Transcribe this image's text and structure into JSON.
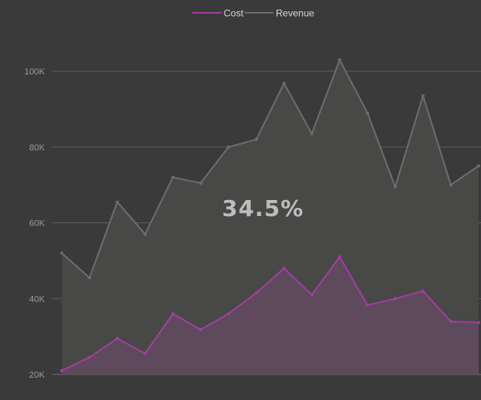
{
  "chart_data": {
    "type": "area",
    "title": "",
    "xlabel": "",
    "ylabel": "",
    "ylim": [
      20000,
      110000
    ],
    "yticks": [
      {
        "value": 20000,
        "label": "20K"
      },
      {
        "value": 40000,
        "label": "40K"
      },
      {
        "value": 60000,
        "label": "60K"
      },
      {
        "value": 80000,
        "label": "80K"
      },
      {
        "value": 100000,
        "label": "100K"
      }
    ],
    "x": [
      1,
      2,
      3,
      4,
      5,
      6,
      7,
      8,
      9,
      10,
      11,
      12,
      13,
      14,
      15,
      16
    ],
    "series": [
      {
        "name": "Revenue",
        "color": "#6c6c6c",
        "fill": "#484846",
        "values": [
          52000,
          45500,
          65500,
          57000,
          72000,
          70500,
          80000,
          82000,
          96800,
          83500,
          103000,
          89000,
          69500,
          93500,
          70000,
          75000
        ]
      },
      {
        "name": "Cost",
        "color": "#a03ea0",
        "fill": "#5e4a5c",
        "values": [
          21000,
          24500,
          29500,
          25500,
          36000,
          31800,
          36000,
          41500,
          48000,
          41000,
          51000,
          38300,
          40000,
          42000,
          34000,
          33700
        ]
      }
    ],
    "legend": {
      "position": "top-center",
      "items": [
        {
          "label": "Cost",
          "color": "#a03ea0"
        },
        {
          "label": "Revenue",
          "color": "#6c6c6c"
        }
      ]
    },
    "center_label": "34.5%",
    "grid": true
  }
}
